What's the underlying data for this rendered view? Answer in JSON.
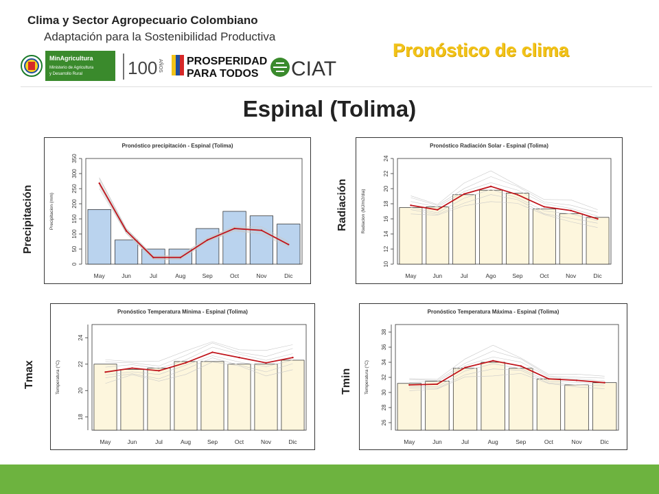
{
  "header": {
    "title": "Clima y Sector Agropecuario Colombiano",
    "subtitle": "Adaptación para la Sostenibilidad Productiva",
    "slide_label": "Pronóstico de clima",
    "station": "Espinal (Tolima)"
  },
  "logos": {
    "minagri_line1": "MinAgricultura",
    "minagri_line2": "Ministerio de Agricultura",
    "minagri_line3": "y Desarrollo Rural",
    "cien": "100",
    "anos": "AÑOS",
    "prosperidad1": "PROSPERIDAD",
    "prosperidad2": "PARA TODOS",
    "ciat": "CIAT"
  },
  "side_labels": {
    "precip": "Precipitación",
    "rad": "Radiación",
    "tmax": "Tmax",
    "tmin": "Tmin"
  },
  "colors": {
    "accent_yellow": "#f2c319",
    "footer_green": "#6db33f",
    "bar_blue": "#bad3ee",
    "bar_cream": "#fdf6dd",
    "line_red": "#c0141b",
    "ensemble_gray": "#c8c8c8"
  },
  "chart_data": [
    {
      "id": "precip",
      "type": "bar",
      "title": "Pronóstico precipitación - Espinal (Tolima)",
      "ylabel": "Precipitacion (mm)",
      "categories": [
        "May",
        "Jun",
        "Jul",
        "Aug",
        "Sep",
        "Oct",
        "Nov",
        "Dic"
      ],
      "values": [
        181,
        80,
        50,
        50,
        118,
        175,
        160,
        133
      ],
      "ylim": [
        0,
        350
      ],
      "yticks": [
        0,
        50,
        100,
        150,
        200,
        250,
        300,
        350
      ],
      "line": [
        268,
        110,
        22,
        22,
        80,
        118,
        112,
        65
      ],
      "series": [
        {
          "name": "Bars",
          "values": [
            181,
            80,
            50,
            50,
            118,
            175,
            160,
            133
          ]
        },
        {
          "name": "Line",
          "values": [
            268,
            110,
            22,
            22,
            80,
            118,
            112,
            65
          ]
        }
      ],
      "spread": [
        18,
        12,
        6,
        6,
        8,
        10,
        10,
        8
      ]
    },
    {
      "id": "rad",
      "type": "bar",
      "title": "Pronóstico Radiación Solar - Espinal (Tolima)",
      "ylabel": "Radiacion (MJ/m2/dia)",
      "categories": [
        "May",
        "Jun",
        "Jul",
        "Ago",
        "Sep",
        "Oct",
        "Nov",
        "Dic"
      ],
      "values": [
        17.5,
        17.6,
        19.2,
        19.8,
        19.4,
        17.3,
        16.7,
        16.2
      ],
      "ylim": [
        10,
        24
      ],
      "yticks": [
        10,
        12,
        14,
        16,
        18,
        20,
        22,
        24
      ],
      "line": [
        17.8,
        17.2,
        19.3,
        20.3,
        19.2,
        17.6,
        17.1,
        16.0
      ],
      "series": [
        {
          "name": "Bars",
          "values": [
            17.5,
            17.6,
            19.2,
            19.8,
            19.4,
            17.3,
            16.7,
            16.2
          ]
        },
        {
          "name": "Line",
          "values": [
            17.8,
            17.2,
            19.3,
            20.3,
            19.2,
            17.6,
            17.1,
            16.0
          ]
        }
      ],
      "spread": [
        1.2,
        1.0,
        1.4,
        1.6,
        1.4,
        1.3,
        1.2,
        1.0
      ]
    },
    {
      "id": "tmax",
      "type": "bar",
      "title": "Pronóstico Temperatura Mínima - Espinal (Tolima)",
      "ylabel": "Temperatura (°C)",
      "categories": [
        "May",
        "Jun",
        "Jul",
        "Aug",
        "Sep",
        "Oct",
        "Nov",
        "Dic"
      ],
      "values": [
        22.0,
        21.6,
        21.7,
        22.2,
        22.2,
        22.0,
        22.0,
        22.3
      ],
      "ylim": [
        17,
        25
      ],
      "yticks": [
        18,
        20,
        22,
        24
      ],
      "line": [
        21.4,
        21.7,
        21.5,
        22.1,
        22.9,
        22.5,
        22.1,
        22.5
      ],
      "series": [
        {
          "name": "Bars",
          "values": [
            22.0,
            21.6,
            21.7,
            22.2,
            22.2,
            22.0,
            22.0,
            22.3
          ]
        },
        {
          "name": "Line",
          "values": [
            21.4,
            21.7,
            21.5,
            22.1,
            22.9,
            22.5,
            22.1,
            22.5
          ]
        }
      ],
      "spread": [
        0.9,
        0.7,
        0.7,
        0.7,
        0.9,
        0.8,
        0.8,
        0.8
      ]
    },
    {
      "id": "tmin",
      "type": "bar",
      "title": "Pronóstico Temperatura Máxima - Espinal (Tolima)",
      "ylabel": "Temperatura (°C)",
      "categories": [
        "May",
        "Jun",
        "Jul",
        "Aug",
        "Sep",
        "Oct",
        "Nov",
        "Dic"
      ],
      "values": [
        31.2,
        31.5,
        33.2,
        34.0,
        33.2,
        31.8,
        31.0,
        31.3
      ],
      "ylim": [
        25,
        39
      ],
      "yticks": [
        26,
        28,
        30,
        32,
        34,
        36,
        38
      ],
      "line": [
        31.0,
        31.1,
        33.3,
        34.2,
        33.5,
        31.8,
        31.6,
        31.3
      ],
      "series": [
        {
          "name": "Bars",
          "values": [
            31.2,
            31.5,
            33.2,
            34.0,
            33.2,
            31.8,
            31.0,
            31.3
          ]
        },
        {
          "name": "Line",
          "values": [
            31.0,
            31.1,
            33.3,
            34.2,
            33.5,
            31.8,
            31.6,
            31.3
          ]
        }
      ],
      "spread": [
        0.8,
        0.9,
        1.1,
        1.6,
        1.2,
        0.8,
        0.7,
        0.7
      ]
    }
  ]
}
